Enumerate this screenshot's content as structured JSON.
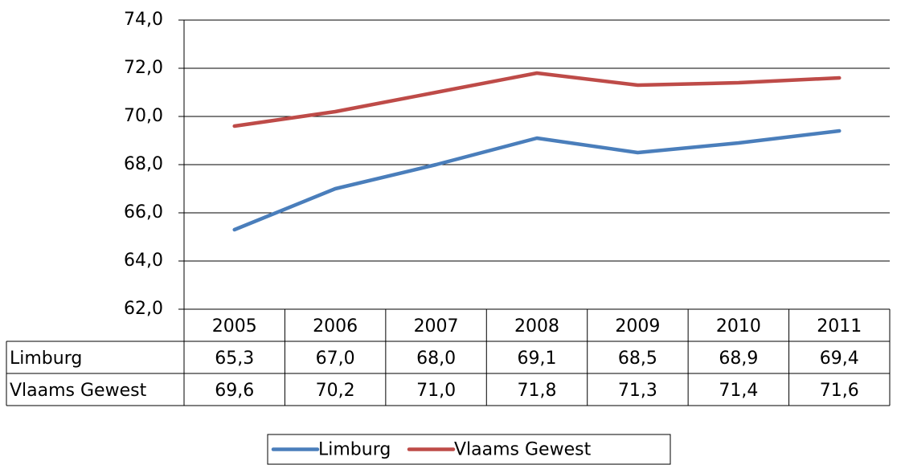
{
  "chart_data": {
    "type": "line",
    "categories": [
      "2005",
      "2006",
      "2007",
      "2008",
      "2009",
      "2010",
      "2011"
    ],
    "series": [
      {
        "name": "Limburg",
        "color": "#4a7ebb",
        "values": [
          65.3,
          67.0,
          68.0,
          69.1,
          68.5,
          68.9,
          69.4
        ],
        "value_labels": [
          "65,3",
          "67,0",
          "68,0",
          "69,1",
          "68,5",
          "68,9",
          "69,4"
        ]
      },
      {
        "name": "Vlaams Gewest",
        "color": "#be4b48",
        "values": [
          69.6,
          70.2,
          71.0,
          71.8,
          71.3,
          71.4,
          71.6
        ],
        "value_labels": [
          "69,6",
          "70,2",
          "71,0",
          "71,8",
          "71,3",
          "71,4",
          "71,6"
        ]
      }
    ],
    "ylim": [
      62,
      74
    ],
    "yticks": [
      {
        "value": 62,
        "label": "62,0"
      },
      {
        "value": 64,
        "label": "64,0"
      },
      {
        "value": 66,
        "label": "66,0"
      },
      {
        "value": 68,
        "label": "68,0"
      },
      {
        "value": 70,
        "label": "70,0"
      },
      {
        "value": 72,
        "label": "72,0"
      },
      {
        "value": 74,
        "label": "74,0"
      }
    ],
    "grid": true,
    "legend": "bottom",
    "data_table": true
  }
}
